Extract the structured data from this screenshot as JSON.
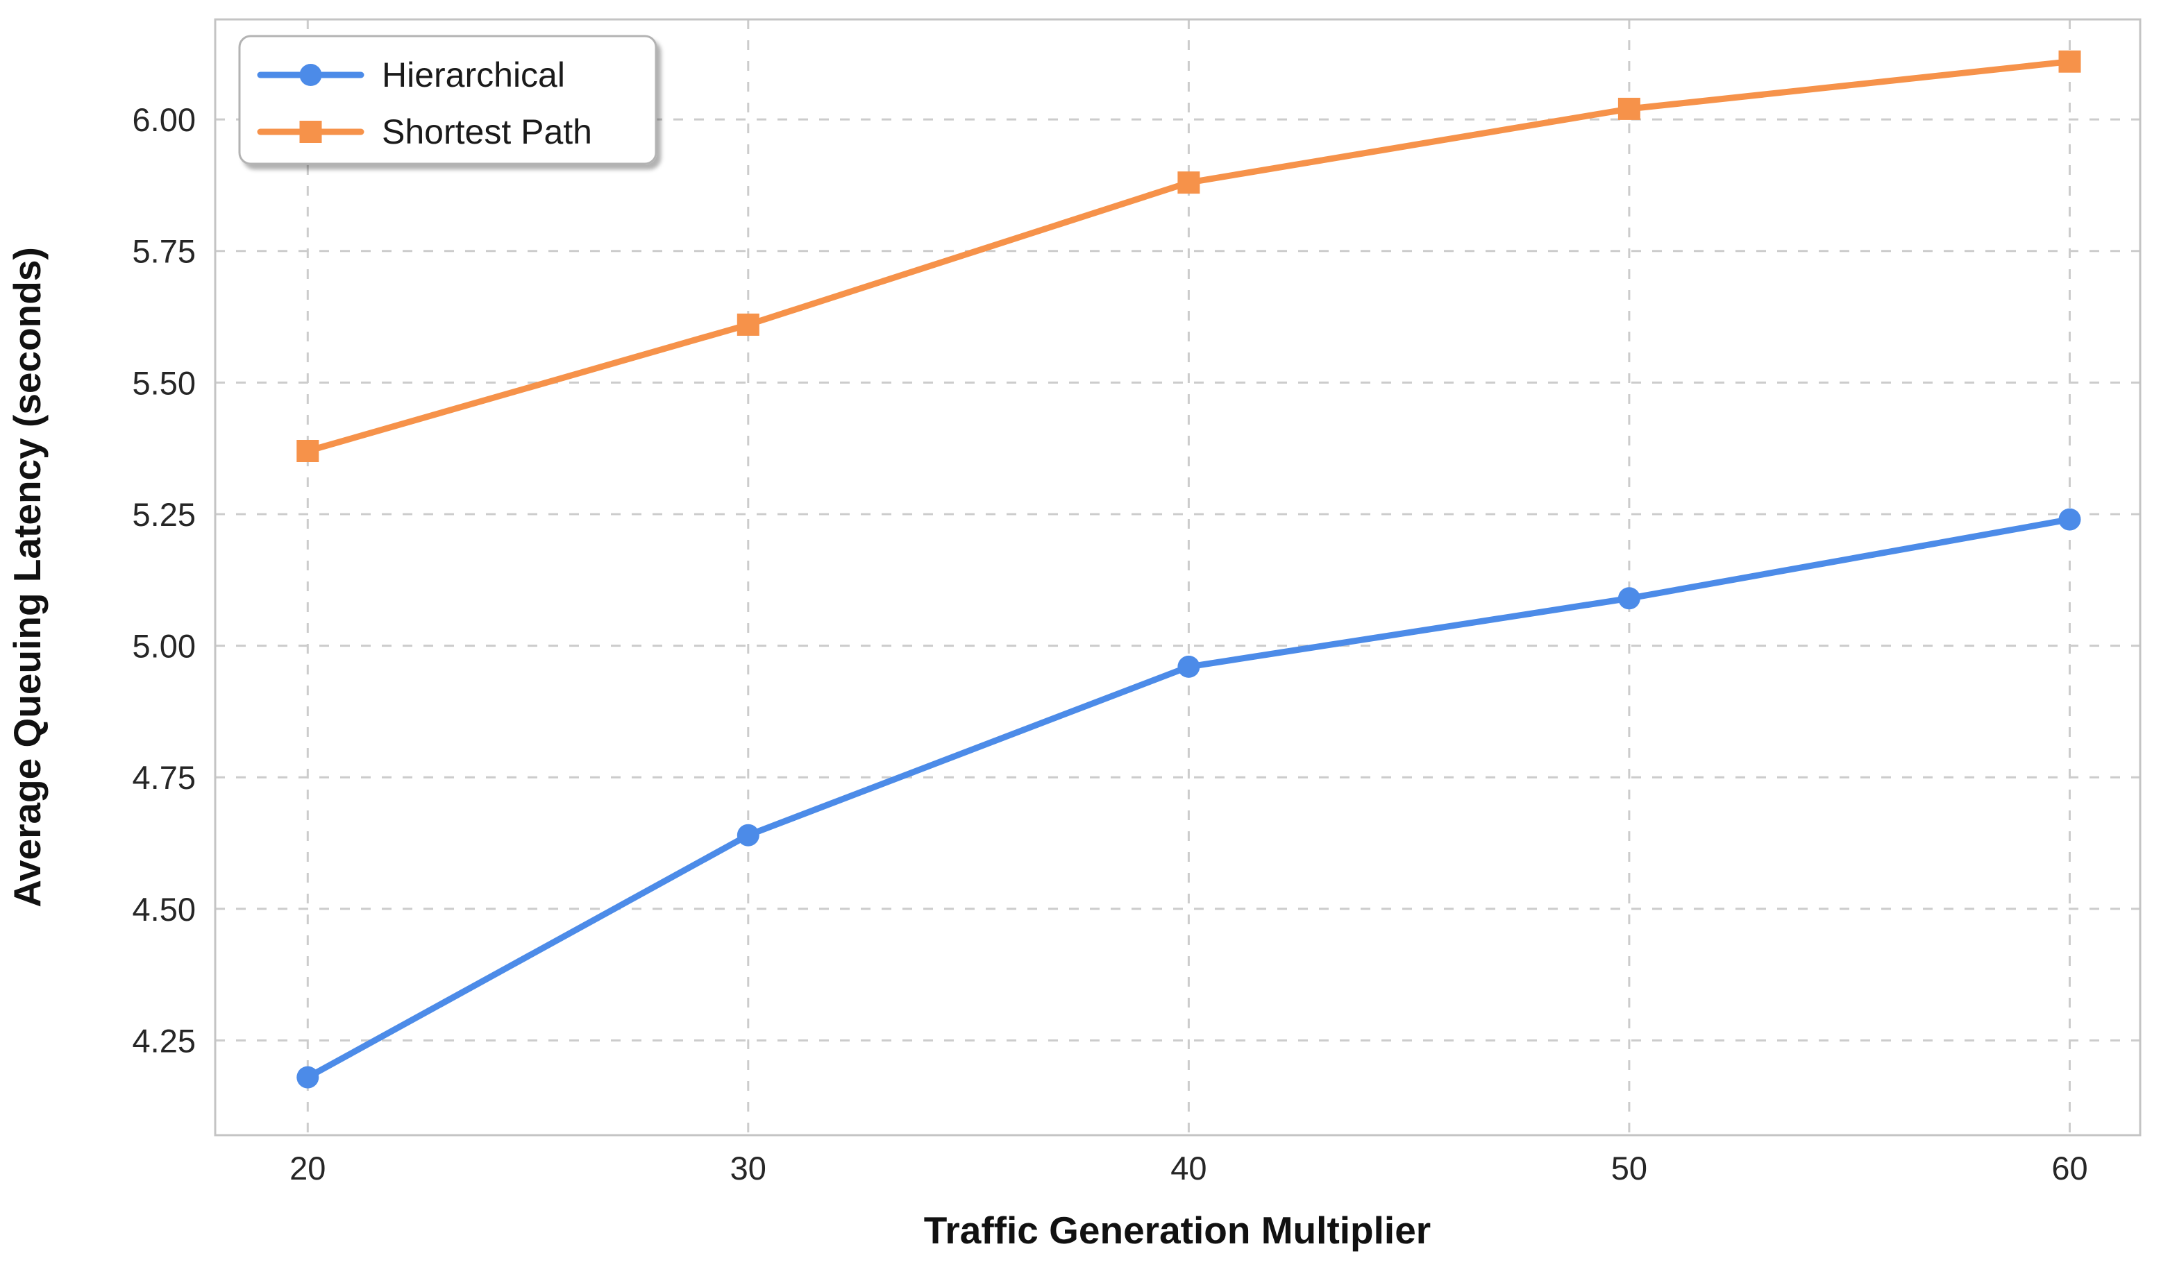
{
  "chart_data": {
    "type": "line",
    "title": "",
    "xlabel": "Traffic Generation Multiplier",
    "ylabel": "Average Queuing Latency (seconds)",
    "x": [
      20,
      30,
      40,
      50,
      60
    ],
    "series": [
      {
        "name": "Hierarchical",
        "marker": "circle",
        "color": "#4c8be8",
        "values": [
          4.18,
          4.64,
          4.96,
          5.09,
          5.24
        ]
      },
      {
        "name": "Shortest Path",
        "marker": "square",
        "color": "#f6924a",
        "values": [
          5.37,
          5.61,
          5.88,
          6.02,
          6.11
        ]
      }
    ],
    "xlim": [
      17.9,
      61.6
    ],
    "ylim": [
      4.07,
      6.19
    ],
    "xticks": [
      20,
      30,
      40,
      50,
      60
    ],
    "xtick_labels": [
      "20",
      "30",
      "40",
      "50",
      "60"
    ],
    "yticks": [
      4.25,
      4.5,
      4.75,
      5.0,
      5.25,
      5.5,
      5.75,
      6.0
    ],
    "ytick_labels": [
      "4.25",
      "4.50",
      "4.75",
      "5.00",
      "5.25",
      "5.50",
      "5.75",
      "6.00"
    ],
    "grid": true,
    "legend": {
      "position": "upper-left",
      "entries": [
        "Hierarchical",
        "Shortest Path"
      ]
    }
  },
  "colors": {
    "hierarchical": "#4c8be8",
    "shortest_path": "#f6924a",
    "grid": "#cccccc",
    "frame": "#c4c4c4",
    "tick_text": "#262626",
    "label_text": "#111111",
    "legend_border": "#b3b3b3",
    "legend_background": "#ffffff"
  }
}
